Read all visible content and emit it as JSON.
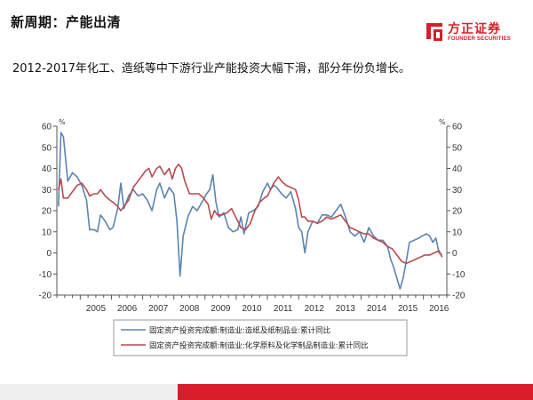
{
  "slide": {
    "title": "新周期：产能出清",
    "subtitle": "2012-2017年化工、造纸等中下游行业产能投资大幅下滑，部分年份负增长。"
  },
  "logo": {
    "name_cn": "方正证券",
    "name_en": "FOUNDER SECURITIES",
    "mark_icon": "founder-logo-icon",
    "color": "#d81e2a"
  },
  "footer": {
    "accent_color": "#d81e2a",
    "gray_color": "#efefef"
  },
  "chart_data": {
    "type": "line",
    "unit_left": "%",
    "unit_right": "%",
    "ylim": [
      -20,
      60
    ],
    "yticks": [
      -20,
      -10,
      0,
      10,
      20,
      30,
      40,
      50,
      60
    ],
    "xlim": [
      2004.25,
      2016.75
    ],
    "xtick_labels": [
      "2005",
      "2006",
      "2007",
      "2008",
      "2009",
      "2010",
      "2011",
      "2012",
      "2013",
      "2014",
      "2015",
      "2016"
    ],
    "grid": false,
    "legend_position": "bottom",
    "series": [
      {
        "name": "固定资产投资完成额:制造业:造纸及纸制品业:累计同比",
        "color": "#5b84b1",
        "points": [
          [
            2004.3,
            22
          ],
          [
            2004.38,
            57
          ],
          [
            2004.46,
            55
          ],
          [
            2004.6,
            34
          ],
          [
            2004.75,
            38
          ],
          [
            2004.9,
            36
          ],
          [
            2005.05,
            32
          ],
          [
            2005.2,
            25
          ],
          [
            2005.3,
            11
          ],
          [
            2005.45,
            11
          ],
          [
            2005.55,
            10
          ],
          [
            2005.65,
            18
          ],
          [
            2005.8,
            15
          ],
          [
            2005.95,
            11
          ],
          [
            2006.05,
            12
          ],
          [
            2006.2,
            21
          ],
          [
            2006.3,
            33
          ],
          [
            2006.4,
            21
          ],
          [
            2006.55,
            27
          ],
          [
            2006.7,
            30
          ],
          [
            2006.85,
            27
          ],
          [
            2007.0,
            28
          ],
          [
            2007.15,
            25
          ],
          [
            2007.3,
            20
          ],
          [
            2007.45,
            30
          ],
          [
            2007.55,
            33
          ],
          [
            2007.7,
            26
          ],
          [
            2007.85,
            31
          ],
          [
            2008.0,
            28
          ],
          [
            2008.1,
            15
          ],
          [
            2008.2,
            -11
          ],
          [
            2008.3,
            8
          ],
          [
            2008.45,
            17
          ],
          [
            2008.6,
            22
          ],
          [
            2008.75,
            20
          ],
          [
            2008.9,
            24
          ],
          [
            2009.05,
            28
          ],
          [
            2009.15,
            30
          ],
          [
            2009.25,
            37
          ],
          [
            2009.35,
            24
          ],
          [
            2009.45,
            17
          ],
          [
            2009.6,
            19
          ],
          [
            2009.75,
            12
          ],
          [
            2009.9,
            10
          ],
          [
            2010.05,
            11
          ],
          [
            2010.15,
            17
          ],
          [
            2010.25,
            9
          ],
          [
            2010.4,
            19
          ],
          [
            2010.55,
            20
          ],
          [
            2010.7,
            22
          ],
          [
            2010.85,
            29
          ],
          [
            2011.0,
            33
          ],
          [
            2011.1,
            30
          ],
          [
            2011.2,
            32
          ],
          [
            2011.3,
            31
          ],
          [
            2011.45,
            28
          ],
          [
            2011.6,
            26
          ],
          [
            2011.75,
            29
          ],
          [
            2011.9,
            21
          ],
          [
            2012.0,
            12
          ],
          [
            2012.1,
            10
          ],
          [
            2012.2,
            0
          ],
          [
            2012.3,
            10
          ],
          [
            2012.45,
            15
          ],
          [
            2012.6,
            14
          ],
          [
            2012.75,
            18
          ],
          [
            2012.9,
            18
          ],
          [
            2013.05,
            17
          ],
          [
            2013.2,
            20
          ],
          [
            2013.35,
            23
          ],
          [
            2013.5,
            17
          ],
          [
            2013.65,
            10
          ],
          [
            2013.8,
            8
          ],
          [
            2013.95,
            10
          ],
          [
            2014.1,
            5
          ],
          [
            2014.25,
            12
          ],
          [
            2014.4,
            8
          ],
          [
            2014.55,
            6
          ],
          [
            2014.7,
            6
          ],
          [
            2014.85,
            3
          ],
          [
            2014.95,
            -3
          ],
          [
            2015.05,
            -7
          ],
          [
            2015.15,
            -12
          ],
          [
            2015.25,
            -17
          ],
          [
            2015.35,
            -12
          ],
          [
            2015.45,
            -4
          ],
          [
            2015.55,
            5
          ],
          [
            2015.7,
            6
          ],
          [
            2015.85,
            7
          ],
          [
            2015.95,
            8
          ],
          [
            2016.1,
            9
          ],
          [
            2016.2,
            8
          ],
          [
            2016.3,
            5
          ],
          [
            2016.4,
            7
          ],
          [
            2016.5,
            0
          ],
          [
            2016.6,
            -1
          ]
        ]
      },
      {
        "name": "固定资产投资完成额:制造业:化学原料及化学制品制造业:累计同比",
        "color": "#b84a4f",
        "points": [
          [
            2004.3,
            30
          ],
          [
            2004.38,
            35
          ],
          [
            2004.46,
            26
          ],
          [
            2004.6,
            26
          ],
          [
            2004.75,
            29
          ],
          [
            2004.9,
            32
          ],
          [
            2005.05,
            33
          ],
          [
            2005.2,
            30
          ],
          [
            2005.3,
            27
          ],
          [
            2005.45,
            28
          ],
          [
            2005.55,
            28
          ],
          [
            2005.65,
            30
          ],
          [
            2005.8,
            27
          ],
          [
            2005.95,
            25
          ],
          [
            2006.05,
            24
          ],
          [
            2006.2,
            22
          ],
          [
            2006.3,
            20
          ],
          [
            2006.4,
            22
          ],
          [
            2006.55,
            25
          ],
          [
            2006.7,
            31
          ],
          [
            2006.85,
            34
          ],
          [
            2007.0,
            37
          ],
          [
            2007.1,
            39
          ],
          [
            2007.2,
            40
          ],
          [
            2007.3,
            36
          ],
          [
            2007.45,
            40
          ],
          [
            2007.55,
            41
          ],
          [
            2007.7,
            37
          ],
          [
            2007.85,
            40
          ],
          [
            2007.95,
            35
          ],
          [
            2008.05,
            40
          ],
          [
            2008.15,
            42
          ],
          [
            2008.25,
            40
          ],
          [
            2008.35,
            34
          ],
          [
            2008.5,
            28
          ],
          [
            2008.65,
            28
          ],
          [
            2008.8,
            28
          ],
          [
            2008.95,
            26
          ],
          [
            2009.1,
            23
          ],
          [
            2009.2,
            16
          ],
          [
            2009.3,
            20
          ],
          [
            2009.4,
            18
          ],
          [
            2009.55,
            18
          ],
          [
            2009.7,
            19
          ],
          [
            2009.85,
            21
          ],
          [
            2009.95,
            18
          ],
          [
            2010.05,
            15
          ],
          [
            2010.15,
            12
          ],
          [
            2010.3,
            11
          ],
          [
            2010.45,
            14
          ],
          [
            2010.6,
            20
          ],
          [
            2010.75,
            24
          ],
          [
            2010.9,
            26
          ],
          [
            2011.0,
            27
          ],
          [
            2011.1,
            30
          ],
          [
            2011.2,
            33
          ],
          [
            2011.35,
            36
          ],
          [
            2011.45,
            34
          ],
          [
            2011.6,
            32
          ],
          [
            2011.75,
            31
          ],
          [
            2011.9,
            30
          ],
          [
            2012.0,
            25
          ],
          [
            2012.1,
            17
          ],
          [
            2012.2,
            17
          ],
          [
            2012.3,
            15
          ],
          [
            2012.45,
            15
          ],
          [
            2012.6,
            14
          ],
          [
            2012.75,
            15
          ],
          [
            2012.9,
            17
          ],
          [
            2013.05,
            16
          ],
          [
            2013.2,
            17
          ],
          [
            2013.35,
            18
          ],
          [
            2013.5,
            15
          ],
          [
            2013.65,
            12
          ],
          [
            2013.8,
            11
          ],
          [
            2013.95,
            10
          ],
          [
            2014.1,
            9
          ],
          [
            2014.25,
            9
          ],
          [
            2014.4,
            7
          ],
          [
            2014.55,
            6
          ],
          [
            2014.7,
            5
          ],
          [
            2014.85,
            3
          ],
          [
            2015.0,
            2
          ],
          [
            2015.15,
            -1
          ],
          [
            2015.3,
            -4
          ],
          [
            2015.45,
            -5
          ],
          [
            2015.6,
            -4
          ],
          [
            2015.75,
            -3
          ],
          [
            2015.9,
            -2
          ],
          [
            2016.05,
            -1
          ],
          [
            2016.2,
            -1
          ],
          [
            2016.35,
            0
          ],
          [
            2016.5,
            1
          ],
          [
            2016.6,
            -2
          ]
        ]
      }
    ]
  }
}
